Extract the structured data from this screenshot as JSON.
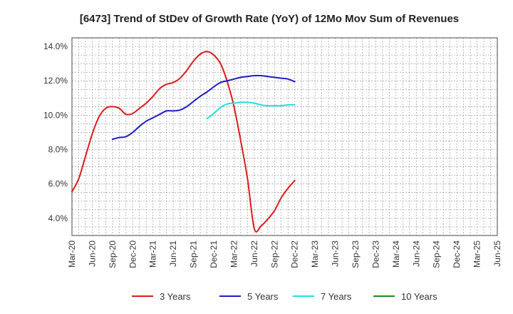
{
  "chart_data": {
    "type": "line",
    "title": "[6473]  Trend of StDev of Growth Rate (YoY) of 12Mo Mov Sum of Revenues",
    "xlabel": "",
    "ylabel": "",
    "ylim": [
      3.0,
      14.5
    ],
    "y_ticks": [
      "4.0%",
      "6.0%",
      "8.0%",
      "10.0%",
      "12.0%",
      "14.0%"
    ],
    "x_ticks": [
      "Mar-20",
      "Jun-20",
      "Sep-20",
      "Dec-20",
      "Mar-21",
      "Jun-21",
      "Sep-21",
      "Dec-21",
      "Mar-22",
      "Jun-22",
      "Sep-22",
      "Dec-22",
      "Mar-23",
      "Jun-23",
      "Sep-23",
      "Dec-23",
      "Mar-24",
      "Jun-24",
      "Sep-24",
      "Dec-24",
      "Mar-25",
      "Jun-25"
    ],
    "grid": true,
    "legend_position": "bottom",
    "series": [
      {
        "name": "3 Years",
        "color": "#dd1c1c",
        "points": [
          [
            0,
            5.55
          ],
          [
            1,
            6.3
          ],
          [
            2,
            7.6
          ],
          [
            3,
            8.9
          ],
          [
            4,
            9.9
          ],
          [
            5,
            10.4
          ],
          [
            6,
            10.5
          ],
          [
            7,
            10.4
          ],
          [
            8,
            10.05
          ],
          [
            9,
            10.1
          ],
          [
            10,
            10.4
          ],
          [
            11,
            10.7
          ],
          [
            12,
            11.1
          ],
          [
            13,
            11.55
          ],
          [
            14,
            11.8
          ],
          [
            15,
            11.9
          ],
          [
            16,
            12.15
          ],
          [
            17,
            12.6
          ],
          [
            18,
            13.15
          ],
          [
            19,
            13.55
          ],
          [
            20,
            13.7
          ],
          [
            21,
            13.5
          ],
          [
            22,
            13.0
          ],
          [
            23,
            11.95
          ],
          [
            24,
            10.5
          ],
          [
            25,
            8.5
          ],
          [
            26,
            6.3
          ],
          [
            27,
            3.4
          ],
          [
            28,
            3.55
          ],
          [
            29,
            3.95
          ],
          [
            30,
            4.45
          ],
          [
            31,
            5.2
          ],
          [
            32,
            5.75
          ],
          [
            33,
            6.2
          ]
        ]
      },
      {
        "name": "5 Years",
        "color": "#1c1cc8",
        "points": [
          [
            6,
            8.6
          ],
          [
            7,
            8.7
          ],
          [
            8,
            8.75
          ],
          [
            9,
            9.0
          ],
          [
            10,
            9.35
          ],
          [
            11,
            9.65
          ],
          [
            12,
            9.85
          ],
          [
            13,
            10.05
          ],
          [
            14,
            10.25
          ],
          [
            15,
            10.25
          ],
          [
            16,
            10.3
          ],
          [
            17,
            10.5
          ],
          [
            18,
            10.8
          ],
          [
            19,
            11.1
          ],
          [
            20,
            11.35
          ],
          [
            21,
            11.65
          ],
          [
            22,
            11.9
          ],
          [
            23,
            12.0
          ],
          [
            24,
            12.1
          ],
          [
            25,
            12.2
          ],
          [
            26,
            12.25
          ],
          [
            27,
            12.3
          ],
          [
            28,
            12.3
          ],
          [
            29,
            12.25
          ],
          [
            30,
            12.2
          ],
          [
            31,
            12.15
          ],
          [
            32,
            12.1
          ],
          [
            33,
            11.95
          ]
        ]
      },
      {
        "name": "7 Years",
        "color": "#22e0e0",
        "points": [
          [
            20,
            9.8
          ],
          [
            21,
            10.1
          ],
          [
            22,
            10.45
          ],
          [
            23,
            10.65
          ],
          [
            24,
            10.7
          ],
          [
            25,
            10.75
          ],
          [
            26,
            10.75
          ],
          [
            27,
            10.7
          ],
          [
            28,
            10.6
          ],
          [
            29,
            10.55
          ],
          [
            30,
            10.55
          ],
          [
            31,
            10.55
          ],
          [
            32,
            10.6
          ],
          [
            33,
            10.6
          ]
        ]
      },
      {
        "name": "10 Years",
        "color": "#1e8c1e",
        "points": []
      }
    ]
  }
}
